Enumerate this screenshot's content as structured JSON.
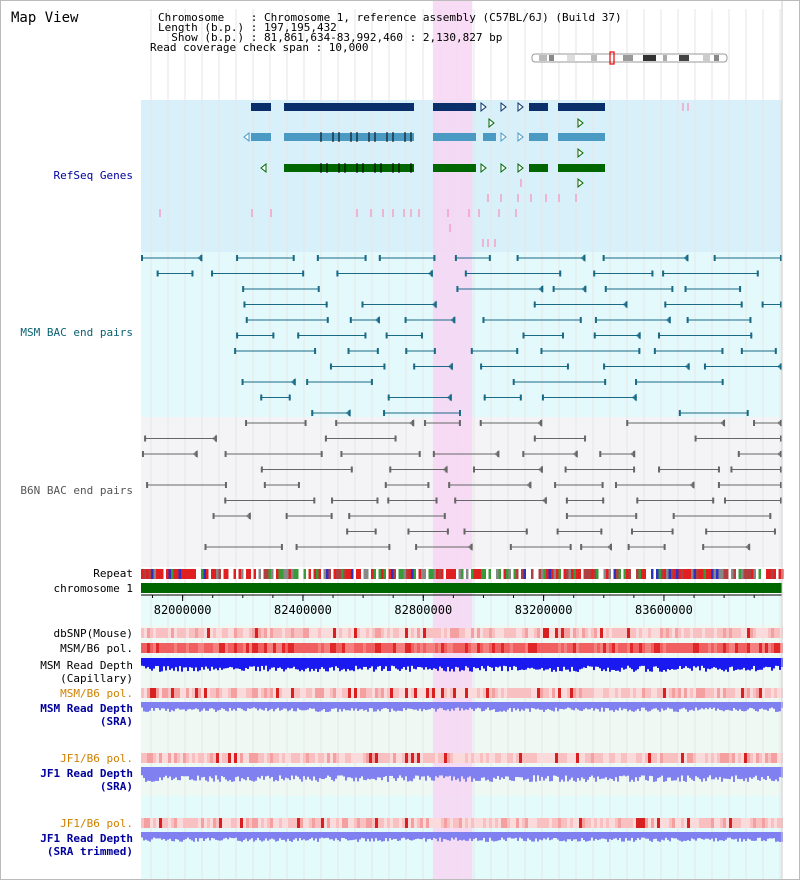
{
  "title": "Map View",
  "info": {
    "chromosome": "Chromosome    : Chromosome 1, reference assembly (C57BL/6J) (Build 37)",
    "length": "Length (b.p.) : 197,195,432",
    "show": "  Show (b.p.) : 81,861,634-83,992,460 : 2,130,827 bp",
    "coverage": "Read coverage check span : 10,000"
  },
  "tracks": {
    "refseq": "RefSeq Genes",
    "msm_bac": "MSM BAC end pairs",
    "b6n_bac": "B6N BAC end pairs",
    "repeat": "Repeat",
    "chromosome": "chromosome 1",
    "dbsnp": "dbSNP(Mouse)",
    "msm_b6_pol_1": "MSM/B6 pol.",
    "msm_rd_cap": "MSM Read Depth\n(Capillary)",
    "msm_b6_pol_2": "MSM/B6 pol.",
    "msm_rd_sra": "MSM Read Depth\n(SRA)",
    "jf1_b6_pol_1": "JF1/B6 pol.",
    "jf1_rd_sra": "JF1 Read Depth\n(SRA)",
    "jf1_b6_pol_2": "JF1/B6 pol.",
    "jf1_rd_trim": "JF1 Read Depth\n(SRA trimmed)"
  },
  "axis": {
    "start": 81861634,
    "end": 83992460,
    "ticks": [
      {
        "value": 82000000,
        "label": "82000000"
      },
      {
        "value": 82400000,
        "label": "82400000"
      },
      {
        "value": 82800000,
        "label": "82800000"
      },
      {
        "value": 83200000,
        "label": "83200000"
      },
      {
        "value": 83600000,
        "label": "83600000"
      }
    ]
  },
  "highlight": {
    "start": 82832000,
    "end": 82963000
  },
  "colors": {
    "refseq_bg": "#d8f0fa",
    "msm_bg": "#e4f9fb",
    "b6n_bg": "#f4f4f6",
    "highlight": "#f7d6f3",
    "gene_dark": "#0a2f6b",
    "gene_mid": "#4a9ac4",
    "gene_green": "#006600",
    "msm_pair": "#1a6a86",
    "b6n_pair": "#666666",
    "chromosome": "#006600",
    "depth_capillary": "#1a1af0",
    "depth_sra": "#8080f0"
  }
}
